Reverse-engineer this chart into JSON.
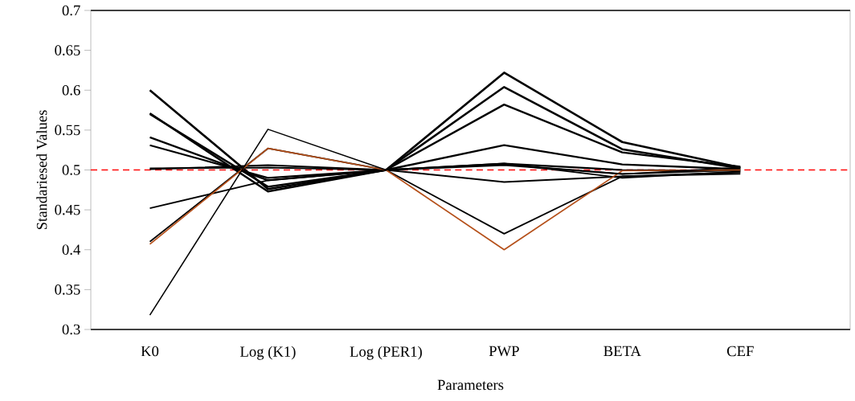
{
  "chart_data": {
    "type": "line",
    "xlabel": "Parameters",
    "ylabel": "Standariesed Values",
    "categories": [
      "K0",
      "Log (K1)",
      "Log (PER1)",
      "PWP",
      "BETA",
      "CEF"
    ],
    "ylim": [
      0.3,
      0.7
    ],
    "yticks": [
      0.3,
      0.35,
      0.4,
      0.45,
      0.5,
      0.55,
      0.6,
      0.65,
      0.7
    ],
    "grid": false,
    "marker": "none",
    "line_style": "solid",
    "ref_lines": [
      {
        "axis": "y",
        "value": 0.5,
        "color": "#ff0000",
        "line_style": "dashed"
      }
    ],
    "series": [
      {
        "color": "#000000",
        "values": [
          0.6,
          0.476,
          0.5,
          0.622,
          0.535,
          0.503
        ]
      },
      {
        "color": "#000000",
        "values": [
          0.571,
          0.473,
          0.5,
          0.604,
          0.526,
          0.502
        ]
      },
      {
        "color": "#000000",
        "values": [
          0.57,
          0.479,
          0.5,
          0.582,
          0.522,
          0.504
        ]
      },
      {
        "color": "#000000",
        "values": [
          0.541,
          0.487,
          0.5,
          0.531,
          0.507,
          0.501
        ]
      },
      {
        "color": "#000000",
        "values": [
          0.531,
          0.49,
          0.5,
          0.508,
          0.5,
          0.499
        ]
      },
      {
        "color": "#000000",
        "values": [
          0.502,
          0.503,
          0.5,
          0.506,
          0.495,
          0.5
        ]
      },
      {
        "color": "#000000",
        "values": [
          0.501,
          0.506,
          0.5,
          0.485,
          0.492,
          0.497
        ]
      },
      {
        "color": "#000000",
        "values": [
          0.452,
          0.487,
          0.5,
          0.508,
          0.49,
          0.498
        ]
      },
      {
        "color": "#000000",
        "values": [
          0.41,
          0.527,
          0.5,
          0.42,
          0.492,
          0.495
        ]
      },
      {
        "color": "#b5501a",
        "values": [
          0.407,
          0.527,
          0.5,
          0.4,
          0.499,
          0.5
        ]
      },
      {
        "color": "#000000",
        "values": [
          0.318,
          0.551,
          0.5,
          0.507,
          0.495,
          0.503
        ]
      }
    ]
  }
}
